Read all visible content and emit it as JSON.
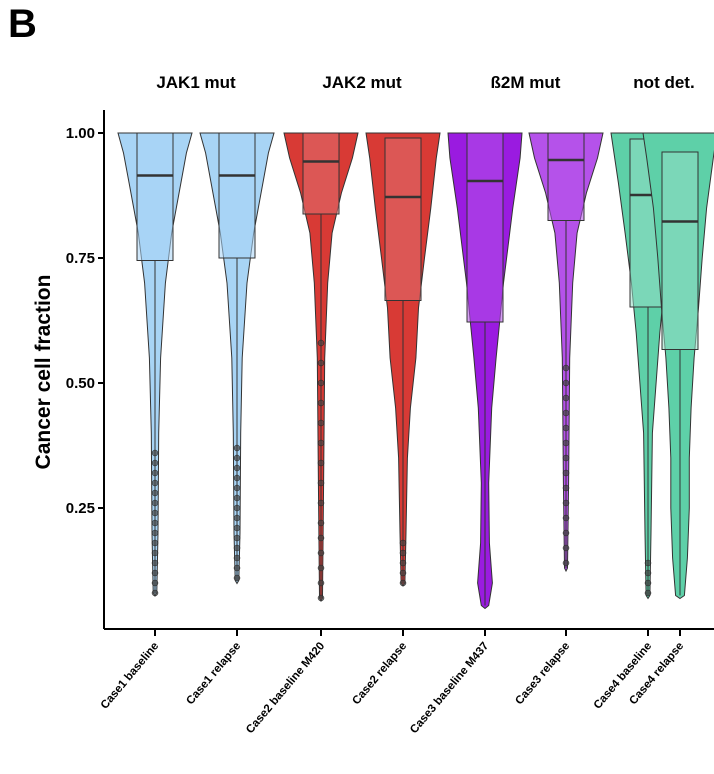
{
  "panel_label": "B",
  "chart_data": {
    "type": "violin",
    "title": "",
    "xlabel": "",
    "ylabel": "Cancer cell fraction",
    "ylim": [
      0.04,
      1.04
    ],
    "yticks": [
      0.25,
      0.5,
      0.75,
      1.0
    ],
    "ytick_labels": [
      "0.25",
      "0.50",
      "0.75",
      "1.00"
    ],
    "grid": false,
    "legend": "none",
    "groups": [
      {
        "label": "JAK1  mut",
        "members": [
          0,
          1
        ]
      },
      {
        "label": "JAK2  mut",
        "members": [
          2,
          3
        ]
      },
      {
        "label": "ß2M  mut",
        "members": [
          4,
          5
        ]
      },
      {
        "label": "not det.",
        "members": [
          6,
          7
        ]
      }
    ],
    "categories": [
      "Case1 baseline",
      "Case1 relapse",
      "Case2 baseline M420",
      "Case2 relapse",
      "Case3 baseline M437",
      "Case3 relapse",
      "Case4 baseline",
      "Case4 relapse"
    ],
    "colors": [
      "#a8d4f5",
      "#a8d4f5",
      "#d83a35",
      "#d83a35",
      "#9a1be0",
      "#b552ea",
      "#5ed0a8",
      "#5ed0a8"
    ],
    "series": [
      {
        "category": "Case1 baseline",
        "fill": "#a8d4f5",
        "boxfill": "#a8d4f5",
        "min": 0.08,
        "q1": 0.745,
        "median": 0.915,
        "q3": 1.0,
        "max": 1.0,
        "width_profile": [
          [
            0.08,
            0.05
          ],
          [
            0.2,
            0.08
          ],
          [
            0.4,
            0.1
          ],
          [
            0.55,
            0.15
          ],
          [
            0.7,
            0.28
          ],
          [
            0.8,
            0.45
          ],
          [
            0.9,
            0.7
          ],
          [
            0.96,
            0.85
          ],
          [
            1.0,
            1.0
          ]
        ],
        "outliers": [
          0.08,
          0.1,
          0.12,
          0.14,
          0.16,
          0.18,
          0.2,
          0.22,
          0.24,
          0.26,
          0.28,
          0.3,
          0.32,
          0.34,
          0.36
        ]
      },
      {
        "category": "Case1 relapse",
        "fill": "#a8d4f5",
        "boxfill": "#a8d4f5",
        "min": 0.105,
        "q1": 0.75,
        "median": 0.915,
        "q3": 1.0,
        "max": 1.0,
        "width_profile": [
          [
            0.105,
            0.05
          ],
          [
            0.2,
            0.08
          ],
          [
            0.4,
            0.1
          ],
          [
            0.55,
            0.14
          ],
          [
            0.7,
            0.27
          ],
          [
            0.8,
            0.45
          ],
          [
            0.9,
            0.7
          ],
          [
            0.96,
            0.85
          ],
          [
            1.0,
            1.0
          ]
        ],
        "outliers": [
          0.11,
          0.13,
          0.15,
          0.17,
          0.19,
          0.21,
          0.23,
          0.25,
          0.27,
          0.29,
          0.31,
          0.33,
          0.35,
          0.37
        ]
      },
      {
        "category": "Case2 baseline M420",
        "fill": "#d83a35",
        "boxfill": "#e07070",
        "min": 0.07,
        "q1": 0.838,
        "median": 0.943,
        "q3": 1.0,
        "max": 1.0,
        "width_profile": [
          [
            0.07,
            0.04
          ],
          [
            0.3,
            0.07
          ],
          [
            0.55,
            0.1
          ],
          [
            0.7,
            0.18
          ],
          [
            0.8,
            0.3
          ],
          [
            0.88,
            0.55
          ],
          [
            0.95,
            0.85
          ],
          [
            1.0,
            1.0
          ]
        ],
        "outliers": [
          0.07,
          0.1,
          0.13,
          0.16,
          0.19,
          0.22,
          0.26,
          0.3,
          0.34,
          0.38,
          0.42,
          0.46,
          0.5,
          0.54,
          0.58
        ]
      },
      {
        "category": "Case2 relapse",
        "fill": "#d83a35",
        "boxfill": "#e07070",
        "min": 0.1,
        "q1": 0.665,
        "median": 0.872,
        "q3": 0.99,
        "max": 1.0,
        "width_profile": [
          [
            0.1,
            0.05
          ],
          [
            0.2,
            0.08
          ],
          [
            0.35,
            0.12
          ],
          [
            0.45,
            0.2
          ],
          [
            0.55,
            0.35
          ],
          [
            0.65,
            0.42
          ],
          [
            0.75,
            0.58
          ],
          [
            0.85,
            0.75
          ],
          [
            0.95,
            0.9
          ],
          [
            1.0,
            1.0
          ]
        ],
        "outliers": [
          0.1,
          0.12,
          0.14,
          0.16,
          0.18
        ]
      },
      {
        "category": "Case3 baseline M437",
        "fill": "#9a1be0",
        "boxfill": "#b552ea",
        "min": 0.055,
        "q1": 0.622,
        "median": 0.904,
        "q3": 1.0,
        "max": 1.0,
        "width_profile": [
          [
            0.055,
            0.1
          ],
          [
            0.1,
            0.2
          ],
          [
            0.18,
            0.12
          ],
          [
            0.3,
            0.1
          ],
          [
            0.45,
            0.18
          ],
          [
            0.55,
            0.3
          ],
          [
            0.7,
            0.5
          ],
          [
            0.85,
            0.75
          ],
          [
            0.95,
            0.95
          ],
          [
            1.0,
            1.0
          ]
        ],
        "outliers": []
      },
      {
        "category": "Case3 relapse",
        "fill": "#b552ea",
        "boxfill": "#b552ea",
        "min": 0.13,
        "q1": 0.825,
        "median": 0.946,
        "q3": 1.0,
        "max": 1.0,
        "width_profile": [
          [
            0.13,
            0.04
          ],
          [
            0.3,
            0.07
          ],
          [
            0.55,
            0.1
          ],
          [
            0.7,
            0.18
          ],
          [
            0.8,
            0.3
          ],
          [
            0.88,
            0.55
          ],
          [
            0.95,
            0.85
          ],
          [
            1.0,
            1.0
          ]
        ],
        "outliers": [
          0.14,
          0.17,
          0.2,
          0.23,
          0.26,
          0.29,
          0.32,
          0.35,
          0.38,
          0.41,
          0.44,
          0.47,
          0.5,
          0.53
        ]
      },
      {
        "category": "Case4 baseline",
        "fill": "#5ed0a8",
        "boxfill": "#93dcc4",
        "min": 0.075,
        "q1": 0.652,
        "median": 0.876,
        "q3": 0.988,
        "max": 1.0,
        "width_profile": [
          [
            0.075,
            0.05
          ],
          [
            0.2,
            0.08
          ],
          [
            0.4,
            0.12
          ],
          [
            0.5,
            0.22
          ],
          [
            0.6,
            0.32
          ],
          [
            0.7,
            0.45
          ],
          [
            0.8,
            0.62
          ],
          [
            0.9,
            0.8
          ],
          [
            1.0,
            1.0
          ]
        ],
        "outliers": [
          0.08,
          0.1,
          0.12,
          0.14
        ]
      },
      {
        "category": "Case4 relapse",
        "fill": "#5ed0a8",
        "boxfill": "#93dcc4",
        "min": 0.075,
        "q1": 0.567,
        "median": 0.823,
        "q3": 0.962,
        "max": 1.0,
        "width_profile": [
          [
            0.075,
            0.12
          ],
          [
            0.15,
            0.2
          ],
          [
            0.25,
            0.25
          ],
          [
            0.35,
            0.25
          ],
          [
            0.45,
            0.3
          ],
          [
            0.55,
            0.38
          ],
          [
            0.65,
            0.5
          ],
          [
            0.75,
            0.6
          ],
          [
            0.85,
            0.72
          ],
          [
            0.95,
            0.9
          ],
          [
            1.0,
            1.0
          ]
        ],
        "outliers": []
      }
    ]
  }
}
